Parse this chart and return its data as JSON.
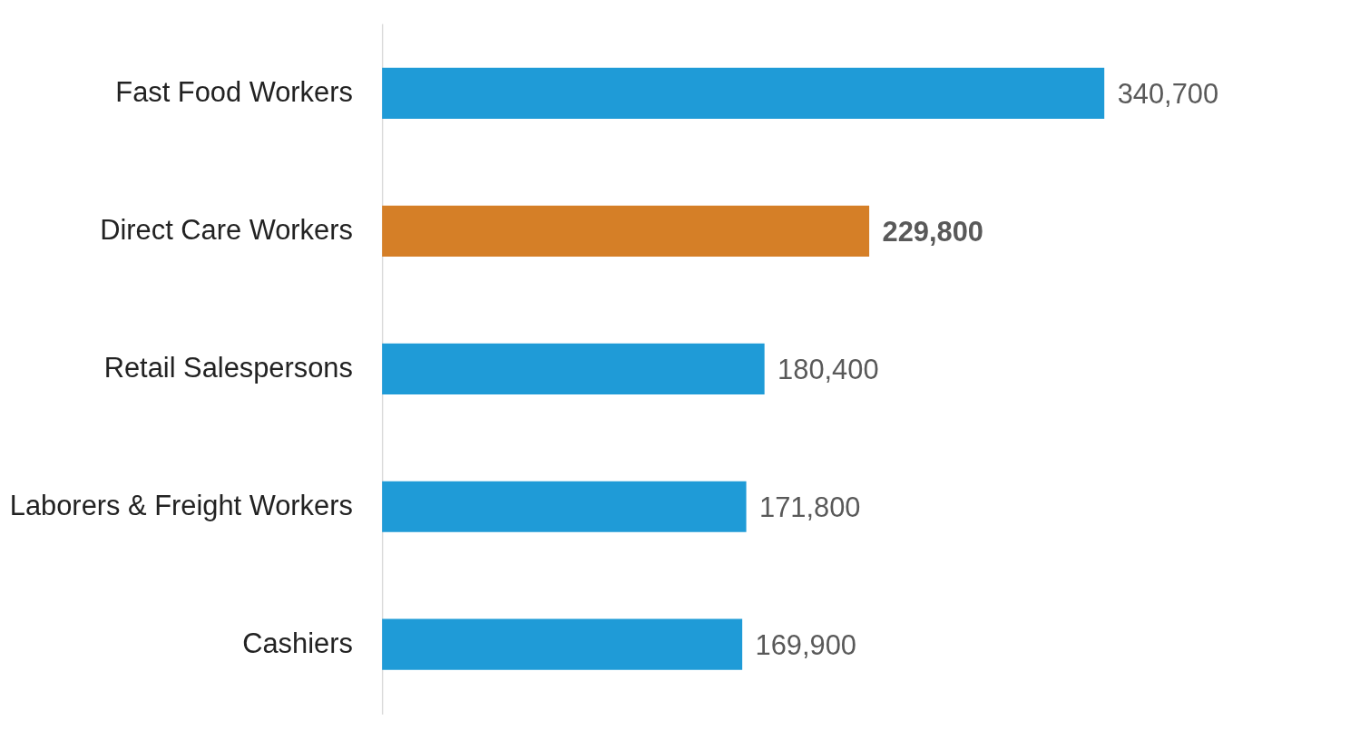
{
  "chart_data": {
    "type": "bar",
    "orientation": "horizontal",
    "categories": [
      "Fast Food Workers",
      "Direct Care Workers",
      "Retail Salespersons",
      "Laborers & Freight Workers",
      "Cashiers"
    ],
    "values": [
      340700,
      229800,
      180400,
      171800,
      169900
    ],
    "colors": [
      "#1f9bd7",
      "#d57f27",
      "#1f9bd7",
      "#1f9bd7",
      "#1f9bd7"
    ],
    "value_labels": [
      "340,700",
      "229,800",
      "180,400",
      "171,800",
      "169,900"
    ],
    "grid": false,
    "tick_labels": "y"
  }
}
